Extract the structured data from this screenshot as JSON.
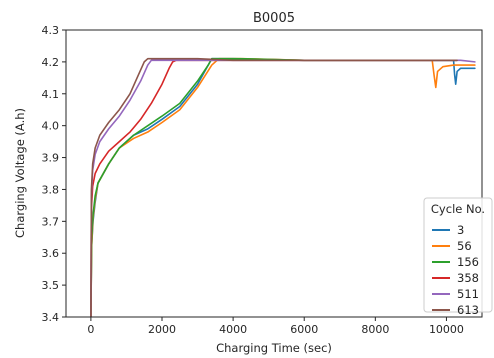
{
  "chart_data": {
    "type": "line",
    "title": "B0005",
    "xlabel": "Charging Time (sec)",
    "ylabel": "Charging Voltage (A.h)",
    "xlim": [
      -700,
      11000
    ],
    "ylim": [
      3.4,
      4.3
    ],
    "xticks": [
      0,
      2000,
      4000,
      6000,
      8000,
      10000
    ],
    "xtick_labels": [
      "0",
      "2000",
      "4000",
      "6000",
      "8000",
      "10000"
    ],
    "yticks": [
      3.4,
      3.5,
      3.6,
      3.7,
      3.8,
      3.9,
      4.0,
      4.1,
      4.2,
      4.3
    ],
    "ytick_labels": [
      "3.4",
      "3.5",
      "3.6",
      "3.7",
      "3.8",
      "3.9",
      "4.0",
      "4.1",
      "4.2",
      "4.3"
    ],
    "grid": false,
    "legend": {
      "title": "Cycle No.",
      "position": "lower-right"
    },
    "series": [
      {
        "name": "3",
        "color": "#1f77b4",
        "points": [
          [
            0,
            3.4
          ],
          [
            20,
            3.62
          ],
          [
            60,
            3.7
          ],
          [
            120,
            3.76
          ],
          [
            200,
            3.82
          ],
          [
            300,
            3.84
          ],
          [
            500,
            3.88
          ],
          [
            800,
            3.93
          ],
          [
            1200,
            3.97
          ],
          [
            1600,
            3.99
          ],
          [
            2000,
            4.02
          ],
          [
            2500,
            4.06
          ],
          [
            3000,
            4.13
          ],
          [
            3300,
            4.19
          ],
          [
            3400,
            4.21
          ],
          [
            4000,
            4.21
          ],
          [
            6000,
            4.205
          ],
          [
            8000,
            4.205
          ],
          [
            9800,
            4.205
          ],
          [
            10200,
            4.205
          ],
          [
            10230,
            4.16
          ],
          [
            10260,
            4.13
          ],
          [
            10300,
            4.17
          ],
          [
            10400,
            4.18
          ],
          [
            10600,
            4.18
          ],
          [
            10800,
            4.18
          ]
        ]
      },
      {
        "name": "56",
        "color": "#ff7f0e",
        "points": [
          [
            0,
            3.4
          ],
          [
            20,
            3.62
          ],
          [
            60,
            3.71
          ],
          [
            120,
            3.77
          ],
          [
            200,
            3.82
          ],
          [
            300,
            3.84
          ],
          [
            500,
            3.88
          ],
          [
            800,
            3.93
          ],
          [
            1200,
            3.96
          ],
          [
            1600,
            3.98
          ],
          [
            2000,
            4.01
          ],
          [
            2500,
            4.05
          ],
          [
            3000,
            4.12
          ],
          [
            3400,
            4.19
          ],
          [
            3600,
            4.21
          ],
          [
            4300,
            4.21
          ],
          [
            6000,
            4.205
          ],
          [
            8000,
            4.205
          ],
          [
            9600,
            4.205
          ],
          [
            9650,
            4.16
          ],
          [
            9700,
            4.12
          ],
          [
            9750,
            4.17
          ],
          [
            9900,
            4.185
          ],
          [
            10200,
            4.19
          ],
          [
            10500,
            4.19
          ],
          [
            10800,
            4.19
          ]
        ]
      },
      {
        "name": "156",
        "color": "#2ca02c",
        "points": [
          [
            0,
            3.4
          ],
          [
            20,
            3.64
          ],
          [
            60,
            3.72
          ],
          [
            120,
            3.78
          ],
          [
            200,
            3.82
          ],
          [
            300,
            3.84
          ],
          [
            500,
            3.88
          ],
          [
            800,
            3.93
          ],
          [
            1200,
            3.97
          ],
          [
            1600,
            4.0
          ],
          [
            2000,
            4.03
          ],
          [
            2500,
            4.07
          ],
          [
            3000,
            4.14
          ],
          [
            3300,
            4.19
          ],
          [
            3400,
            4.21
          ],
          [
            4200,
            4.21
          ],
          [
            6000,
            4.205
          ],
          [
            8000,
            4.205
          ],
          [
            10000,
            4.205
          ],
          [
            10300,
            4.205
          ]
        ]
      },
      {
        "name": "358",
        "color": "#d62728",
        "points": [
          [
            0,
            3.4
          ],
          [
            15,
            3.74
          ],
          [
            50,
            3.81
          ],
          [
            120,
            3.85
          ],
          [
            250,
            3.88
          ],
          [
            500,
            3.92
          ],
          [
            800,
            3.95
          ],
          [
            1100,
            3.98
          ],
          [
            1400,
            4.02
          ],
          [
            1700,
            4.07
          ],
          [
            2000,
            4.13
          ],
          [
            2200,
            4.18
          ],
          [
            2300,
            4.2
          ],
          [
            2400,
            4.205
          ],
          [
            3000,
            4.205
          ],
          [
            5000,
            4.205
          ],
          [
            8000,
            4.205
          ],
          [
            10000,
            4.205
          ],
          [
            10300,
            4.205
          ]
        ]
      },
      {
        "name": "511",
        "color": "#9467bd",
        "points": [
          [
            0,
            3.4
          ],
          [
            15,
            3.78
          ],
          [
            50,
            3.86
          ],
          [
            120,
            3.91
          ],
          [
            250,
            3.95
          ],
          [
            500,
            3.99
          ],
          [
            800,
            4.03
          ],
          [
            1100,
            4.08
          ],
          [
            1400,
            4.14
          ],
          [
            1600,
            4.19
          ],
          [
            1700,
            4.205
          ],
          [
            2000,
            4.205
          ],
          [
            4000,
            4.205
          ],
          [
            8000,
            4.205
          ],
          [
            10000,
            4.205
          ],
          [
            10400,
            4.205
          ],
          [
            10800,
            4.2
          ]
        ]
      },
      {
        "name": "613",
        "color": "#8c564b",
        "points": [
          [
            0,
            3.4
          ],
          [
            15,
            3.8
          ],
          [
            50,
            3.88
          ],
          [
            120,
            3.93
          ],
          [
            250,
            3.97
          ],
          [
            500,
            4.01
          ],
          [
            800,
            4.05
          ],
          [
            1100,
            4.1
          ],
          [
            1300,
            4.15
          ],
          [
            1500,
            4.2
          ],
          [
            1600,
            4.21
          ],
          [
            2200,
            4.21
          ],
          [
            3000,
            4.21
          ],
          [
            4000,
            4.205
          ],
          [
            8000,
            4.205
          ],
          [
            10000,
            4.205
          ],
          [
            10300,
            4.205
          ]
        ]
      }
    ]
  }
}
